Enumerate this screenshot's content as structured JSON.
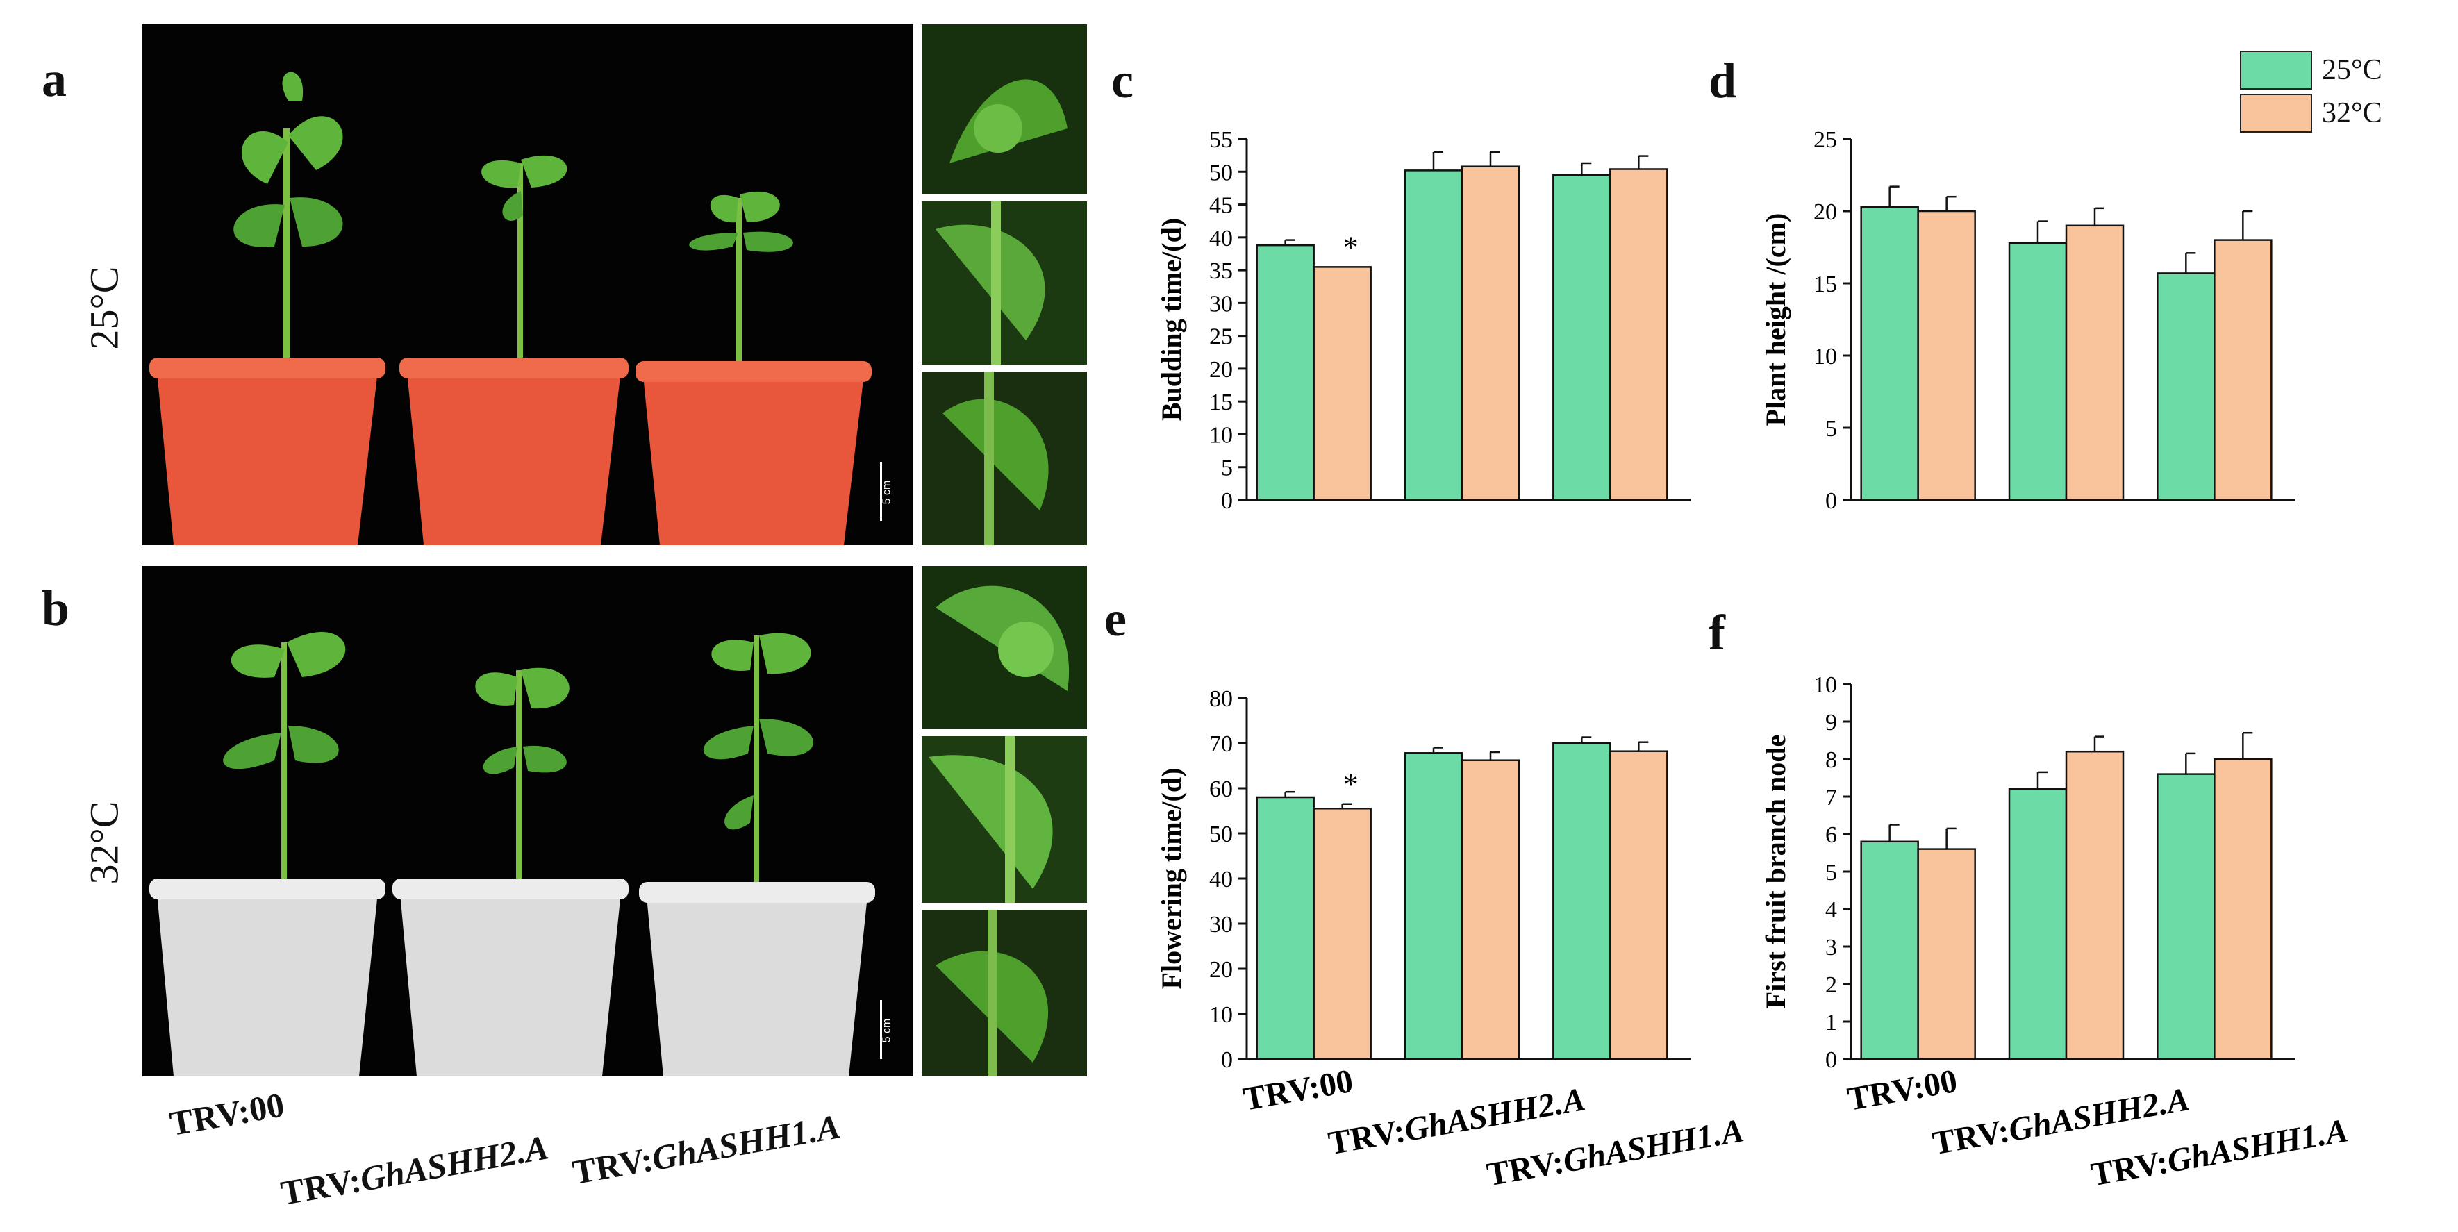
{
  "figure": {
    "panel_letters": {
      "a": "a",
      "b": "b",
      "c": "c",
      "d": "d",
      "e": "e",
      "f": "f"
    },
    "temperatures": {
      "t25": "25°C",
      "t32": "32°C"
    },
    "scale_bar": "5 cm",
    "group_labels": [
      {
        "prefix": "TRV:",
        "gene": "00"
      },
      {
        "prefix": "TRV:",
        "gene": "GhASHH2.A"
      },
      {
        "prefix": "TRV:",
        "gene": "GhASHH1.A"
      }
    ],
    "legend": [
      {
        "label": "25°C",
        "color": "#6ddba5"
      },
      {
        "label": "32°C",
        "color": "#f9c49b"
      }
    ],
    "colors": {
      "c25": "#6ddba5",
      "c32": "#f9c49b",
      "pot_red": "#e8573c",
      "pot_white": "#dcdcdc",
      "leaf": "#5fb53c",
      "background": "#030303"
    }
  },
  "chart_data": [
    {
      "id": "c",
      "type": "bar",
      "categories": [
        "TRV:00",
        "TRV:GhASHH2.A",
        "TRV:GhASHH1.A"
      ],
      "ylabel": "Budding time/(d)",
      "ylim": [
        0,
        55
      ],
      "yticks": [
        0,
        5,
        10,
        15,
        20,
        25,
        30,
        35,
        40,
        45,
        50,
        55
      ],
      "series": [
        {
          "name": "25°C",
          "values": [
            38.8,
            50.2,
            49.5
          ],
          "errors": [
            0.8,
            2.8,
            1.8
          ]
        },
        {
          "name": "32°C",
          "values": [
            35.5,
            50.8,
            50.4
          ],
          "errors": [
            0,
            2.2,
            2.0
          ]
        }
      ],
      "annotations": [
        {
          "category": 0,
          "series": 1,
          "text": "*"
        }
      ]
    },
    {
      "id": "d",
      "type": "bar",
      "categories": [
        "TRV:00",
        "TRV:GhASHH2.A",
        "TRV:GhASHH1.A"
      ],
      "ylabel": "Plant height /(cm)",
      "ylim": [
        0,
        25
      ],
      "yticks": [
        0,
        5,
        10,
        15,
        20,
        25
      ],
      "series": [
        {
          "name": "25°C",
          "values": [
            20.3,
            17.8,
            15.7
          ],
          "errors": [
            1.4,
            1.5,
            1.4
          ]
        },
        {
          "name": "32°C",
          "values": [
            20.0,
            19.0,
            18.0
          ],
          "errors": [
            1.0,
            1.2,
            2.0
          ]
        }
      ],
      "annotations": []
    },
    {
      "id": "e",
      "type": "bar",
      "categories": [
        "TRV:00",
        "TRV:GhASHH2.A",
        "TRV:GhASHH1.A"
      ],
      "ylabel": "Flowering time/(d)",
      "ylim": [
        0,
        80
      ],
      "yticks": [
        0,
        10,
        20,
        30,
        40,
        50,
        60,
        70,
        80
      ],
      "series": [
        {
          "name": "25°C",
          "values": [
            58.0,
            67.8,
            70.0
          ],
          "errors": [
            1.2,
            1.2,
            1.3
          ]
        },
        {
          "name": "32°C",
          "values": [
            55.5,
            66.2,
            68.2
          ],
          "errors": [
            1.0,
            1.8,
            2.0
          ]
        }
      ],
      "annotations": [
        {
          "category": 0,
          "series": 1,
          "text": "*"
        }
      ]
    },
    {
      "id": "f",
      "type": "bar",
      "categories": [
        "TRV:00",
        "TRV:GhASHH2.A",
        "TRV:GhASHH1.A"
      ],
      "ylabel": "First fruit branch node",
      "ylim": [
        0,
        10
      ],
      "yticks": [
        0,
        1,
        2,
        3,
        4,
        5,
        6,
        7,
        8,
        9,
        10
      ],
      "series": [
        {
          "name": "25°C",
          "values": [
            5.8,
            7.2,
            7.6
          ],
          "errors": [
            0.45,
            0.45,
            0.55
          ]
        },
        {
          "name": "32°C",
          "values": [
            5.6,
            8.2,
            8.0
          ],
          "errors": [
            0.55,
            0.4,
            0.7
          ]
        }
      ],
      "annotations": []
    }
  ]
}
